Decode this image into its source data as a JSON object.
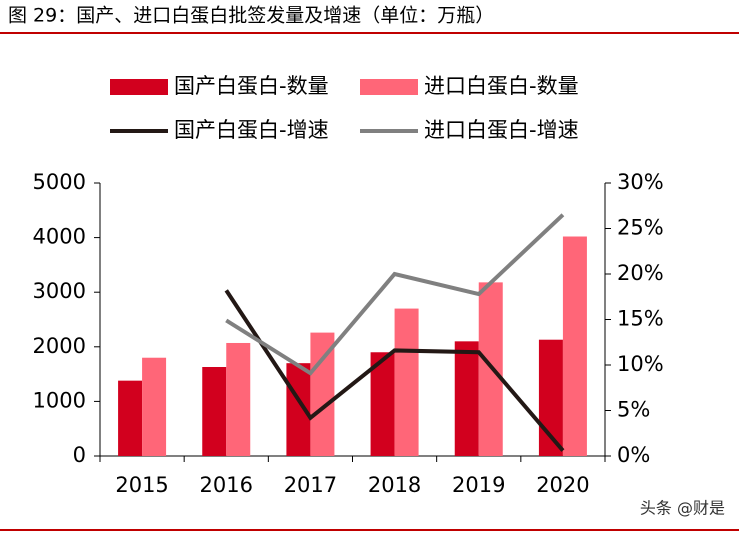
{
  "chart_data": {
    "type": "bar",
    "title": "图 29：国产、进口白蛋白批签发量及增速（单位：万瓶）",
    "watermark": "头条 @财是",
    "categories": [
      "2015",
      "2016",
      "2017",
      "2018",
      "2019",
      "2020"
    ],
    "series": [
      {
        "name": "国产白蛋白-数量",
        "type": "bar",
        "color": "#d2001e",
        "values": [
          1380,
          1630,
          1700,
          1900,
          2100,
          2130
        ]
      },
      {
        "name": "进口白蛋白-数量",
        "type": "bar",
        "color": "#ff6678",
        "values": [
          1800,
          2070,
          2260,
          2700,
          3180,
          4020
        ]
      },
      {
        "name": "国产白蛋白-增速",
        "type": "line",
        "axis": "y2",
        "color": "#231815",
        "values": [
          null,
          18.2,
          4.2,
          11.6,
          11.4,
          0.6
        ]
      },
      {
        "name": "进口白蛋白-增速",
        "type": "line",
        "axis": "y2",
        "color": "#808080",
        "values": [
          null,
          14.9,
          9.1,
          20.0,
          17.8,
          26.5
        ]
      }
    ],
    "ylim": [
      0,
      5000
    ],
    "yticks": [
      0,
      1000,
      2000,
      3000,
      4000,
      5000
    ],
    "y2lim": [
      0,
      30
    ],
    "y2ticks": [
      {
        "value": 0,
        "label": "0%"
      },
      {
        "value": 5,
        "label": "5%"
      },
      {
        "value": 10,
        "label": "10%"
      },
      {
        "value": 15,
        "label": "15%"
      },
      {
        "value": 20,
        "label": "20%"
      },
      {
        "value": 25,
        "label": "25%"
      },
      {
        "value": 30,
        "label": "30%"
      }
    ]
  }
}
